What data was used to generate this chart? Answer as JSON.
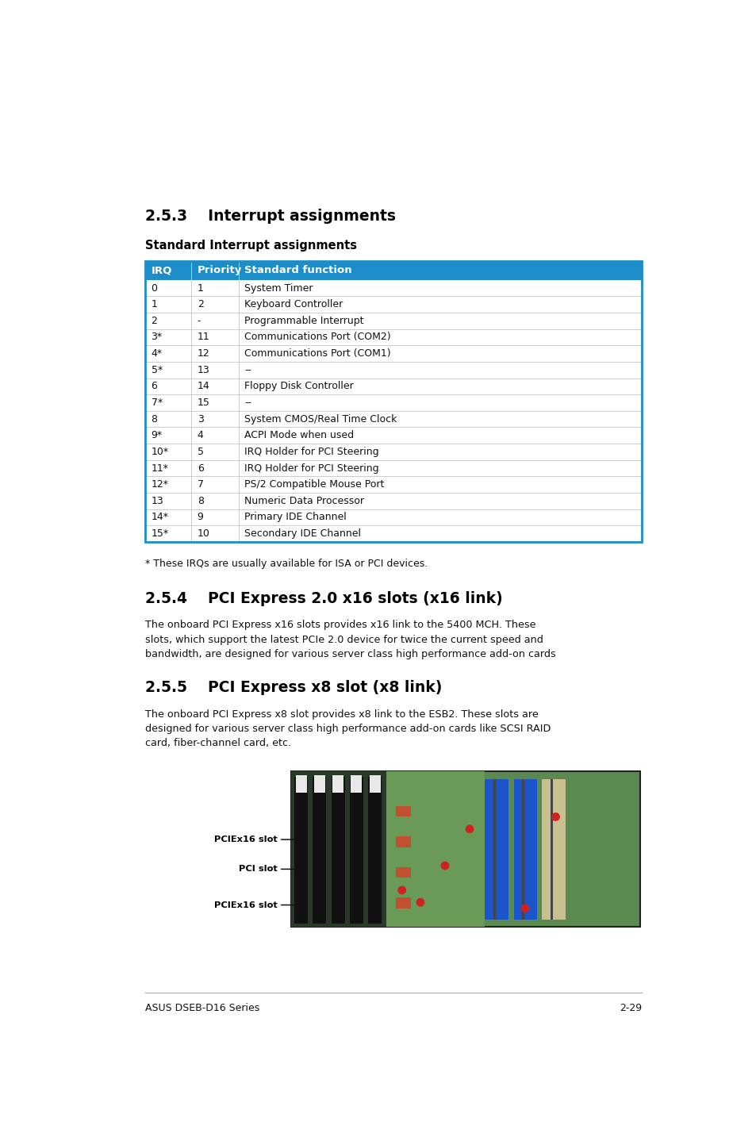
{
  "page_bg": "#ffffff",
  "section_title_1": "2.5.3    Interrupt assignments",
  "subsection_title_1": "Standard Interrupt assignments",
  "table_header_bg": "#1c8dc8",
  "table_header_text_color": "#ffffff",
  "table_border_color": "#1c8dc8",
  "table_divider_color": "#cccccc",
  "table_headers": [
    "IRQ",
    "Priority",
    "Standard function"
  ],
  "table_rows": [
    [
      "0",
      "1",
      "System Timer"
    ],
    [
      "1",
      "2",
      "Keyboard Controller"
    ],
    [
      "2",
      "-",
      "Programmable Interrupt"
    ],
    [
      "3*",
      "11",
      "Communications Port (COM2)"
    ],
    [
      "4*",
      "12",
      "Communications Port (COM1)"
    ],
    [
      "5*",
      "13",
      "--"
    ],
    [
      "6",
      "14",
      "Floppy Disk Controller"
    ],
    [
      "7*",
      "15",
      "--"
    ],
    [
      "8",
      "3",
      "System CMOS/Real Time Clock"
    ],
    [
      "9*",
      "4",
      "ACPI Mode when used"
    ],
    [
      "10*",
      "5",
      "IRQ Holder for PCI Steering"
    ],
    [
      "11*",
      "6",
      "IRQ Holder for PCI Steering"
    ],
    [
      "12*",
      "7",
      "PS/2 Compatible Mouse Port"
    ],
    [
      "13",
      "8",
      "Numeric Data Processor"
    ],
    [
      "14*",
      "9",
      "Primary IDE Channel"
    ],
    [
      "15*",
      "10",
      "Secondary IDE Channel"
    ]
  ],
  "footnote": "* These IRQs are usually available for ISA or PCI devices.",
  "section_title_2": "2.5.4    PCI Express 2.0 x16 slots (x16 link)",
  "section_text_2_lines": [
    "The onboard PCI Express x16 slots provides x16 link to the 5400 MCH. These",
    "slots, which support the latest PCIe 2.0 device for twice the current speed and",
    "bandwidth, are designed for various server class high performance add-on cards"
  ],
  "section_title_3": "2.5.5    PCI Express x8 slot (x8 link)",
  "section_text_3_lines": [
    "The onboard PCI Express x8 slot provides x8 link to the ESB2. These slots are",
    "designed for various server class high performance add-on cards like SCSI RAID",
    "card, fiber-channel card, etc."
  ],
  "image_labels": [
    "PCIEx16 slot",
    "PCI slot",
    "PCIEx16 slot"
  ],
  "footer_left": "ASUS DSEB-D16 Series",
  "footer_right": "2-29"
}
